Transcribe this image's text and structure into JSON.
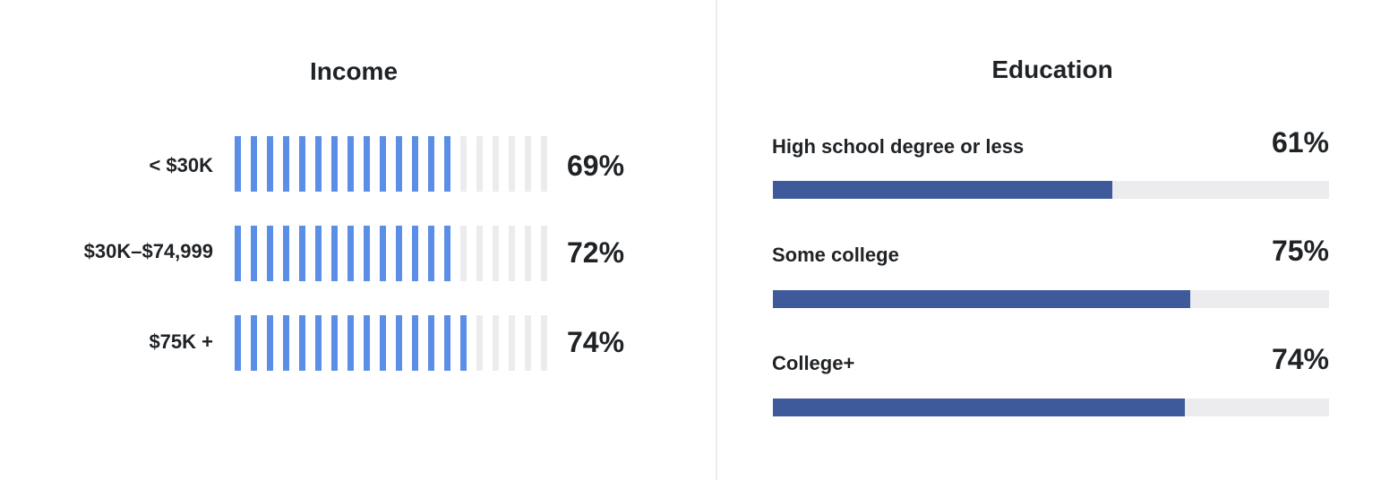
{
  "chart_data": [
    {
      "type": "bar",
      "title": "Income",
      "categories": [
        "< $30K",
        "$30K–$74,999",
        "$75K +"
      ],
      "values": [
        69,
        72,
        74
      ],
      "value_labels": [
        "69%",
        "72%",
        "74%"
      ],
      "ylim": [
        0,
        100
      ],
      "style": "striped",
      "fill_color": "#5b8ee6",
      "track_color": "#ececee"
    },
    {
      "type": "bar",
      "title": "Education",
      "categories": [
        "High school degree or less",
        "Some college",
        "College+"
      ],
      "values": [
        61,
        75,
        74
      ],
      "value_labels": [
        "61%",
        "75%",
        "74%"
      ],
      "ylim": [
        0,
        100
      ],
      "fill_color": "#3e5a9b",
      "track_color": "#ececee"
    }
  ]
}
